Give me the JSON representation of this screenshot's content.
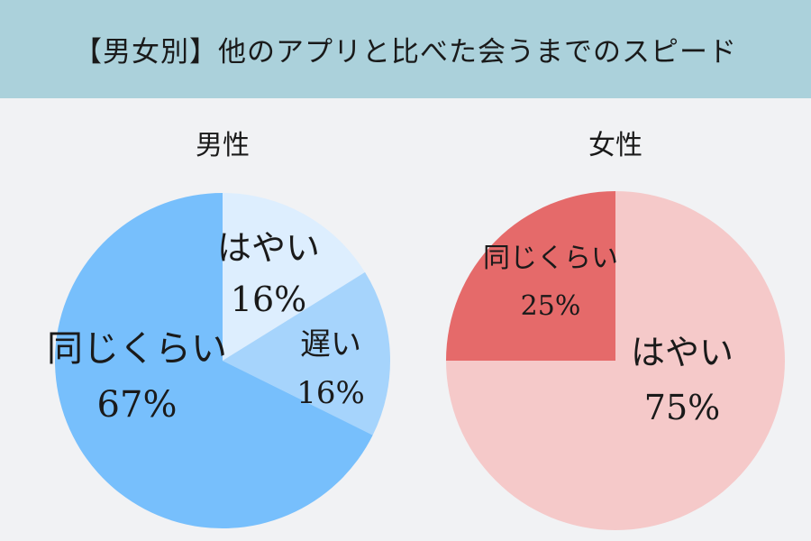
{
  "header": {
    "title": "【男女別】他のアプリと比べた会うまでのスピード"
  },
  "chart_data": [
    {
      "type": "pie",
      "title": "男性",
      "slices": [
        {
          "label": "はやい",
          "value": 16,
          "value_label": "16%",
          "color": "#ddeefe"
        },
        {
          "label": "遅い",
          "value": 16,
          "value_label": "16%",
          "color": "#a6d4fc"
        },
        {
          "label": "同じくらい",
          "value": 67,
          "value_label": "67%",
          "color": "#77bffc"
        }
      ]
    },
    {
      "type": "pie",
      "title": "女性",
      "slices": [
        {
          "label": "はやい",
          "value": 75,
          "value_label": "75%",
          "color": "#f5c9c9"
        },
        {
          "label": "同じくらい",
          "value": 25,
          "value_label": "25%",
          "color": "#e56a6a"
        }
      ]
    }
  ]
}
